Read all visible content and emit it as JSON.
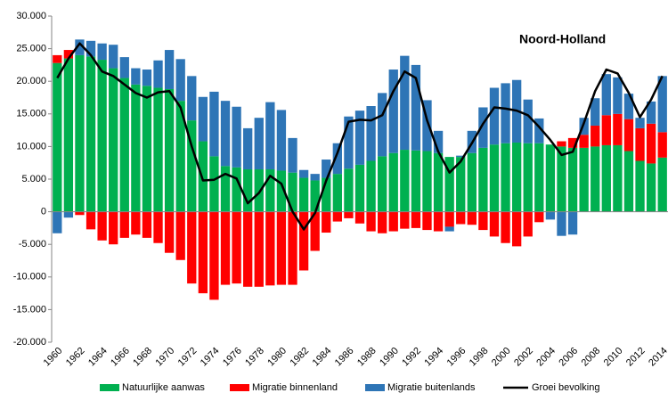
{
  "chart_data": {
    "type": "bar",
    "stacked": true,
    "title": "Noord-Holland",
    "categories": [
      "1960",
      null,
      "1962",
      null,
      "1964",
      null,
      "1966",
      null,
      "1968",
      null,
      "1970",
      null,
      "1972",
      null,
      "1974",
      null,
      "1976",
      null,
      "1978",
      null,
      "1980",
      null,
      "1982",
      null,
      "1984",
      null,
      "1986",
      null,
      "1988",
      null,
      "1990",
      null,
      "1992",
      null,
      "1994",
      null,
      "1996",
      null,
      "1998",
      null,
      "2000",
      null,
      "2002",
      null,
      "2004",
      null,
      "2006",
      null,
      "2008",
      null,
      "2010",
      null,
      "2012",
      null,
      "2014"
    ],
    "series": [
      {
        "name": "Natuurlijke aanwas",
        "color": "#00b050",
        "type": "bar",
        "values": [
          22800,
          23500,
          24000,
          23800,
          23300,
          22000,
          20500,
          19500,
          19300,
          19000,
          18800,
          17000,
          14000,
          10800,
          8500,
          7000,
          6800,
          6500,
          6500,
          6500,
          6300,
          6000,
          5200,
          4800,
          5200,
          5800,
          6600,
          7200,
          7800,
          8500,
          9000,
          9500,
          9400,
          9300,
          9000,
          8400,
          8400,
          9000,
          9800,
          10300,
          10500,
          10600,
          10500,
          10500,
          10300,
          10000,
          9800,
          9800,
          10000,
          10200,
          10200,
          9300,
          7800,
          7400,
          8300
        ]
      },
      {
        "name": "Migratie binnenland",
        "color": "#ff0000",
        "type": "bar",
        "values": [
          1200,
          1300,
          -500,
          -2700,
          -4400,
          -5000,
          -4000,
          -3500,
          -4000,
          -4800,
          -6300,
          -7400,
          -11000,
          -12500,
          -13500,
          -11200,
          -11000,
          -11500,
          -11500,
          -11300,
          -11200,
          -11200,
          -9000,
          -6000,
          -3200,
          -1500,
          -1000,
          -1800,
          -3000,
          -3300,
          -3000,
          -2600,
          -2500,
          -2800,
          -3000,
          -2300,
          -1900,
          -2000,
          -2800,
          -3800,
          -4800,
          -5300,
          -3800,
          -1600,
          0,
          800,
          1500,
          2000,
          3200,
          4600,
          4800,
          4900,
          5000,
          6100,
          3900
        ]
      },
      {
        "name": "Migratie buitenlands",
        "color": "#2e75b6",
        "type": "bar",
        "values": [
          -3300,
          -900,
          2400,
          2400,
          2500,
          3600,
          3200,
          2500,
          2500,
          4200,
          6000,
          6400,
          6800,
          6800,
          9900,
          10000,
          9300,
          6300,
          7900,
          10300,
          9300,
          5300,
          1200,
          1000,
          2800,
          4700,
          8000,
          8300,
          8400,
          9700,
          12800,
          14400,
          13100,
          7800,
          3400,
          -700,
          200,
          3400,
          6200,
          8700,
          9200,
          9600,
          6700,
          3800,
          -1200,
          -3700,
          -3500,
          2600,
          4200,
          6300,
          5600,
          3900,
          1600,
          3400,
          8600
        ]
      },
      {
        "name": "Groei bevolking",
        "color": "#000000",
        "type": "line",
        "values": [
          20500,
          23500,
          25800,
          24000,
          21500,
          20800,
          19500,
          18200,
          17500,
          18300,
          18500,
          16000,
          10000,
          4800,
          4900,
          5800,
          5100,
          1300,
          2900,
          5500,
          4300,
          0,
          -2700,
          -200,
          4800,
          9000,
          13800,
          14100,
          14000,
          14800,
          18500,
          21500,
          20500,
          14000,
          9200,
          6000,
          7700,
          10500,
          13500,
          16000,
          15800,
          15500,
          14800,
          13000,
          11000,
          8700,
          9200,
          13600,
          18500,
          21800,
          21200,
          18200,
          14500,
          17200,
          20800
        ]
      }
    ],
    "ylim": [
      -20000,
      30000
    ],
    "yticks": [
      {
        "value": -20000,
        "label": "-20.000"
      },
      {
        "value": -15000,
        "label": "-15.000"
      },
      {
        "value": -10000,
        "label": "-10.000"
      },
      {
        "value": -5000,
        "label": "-5.000"
      },
      0,
      {
        "value": 5000,
        "label": "5.000"
      },
      {
        "value": 10000,
        "label": "10.000"
      },
      {
        "value": 15000,
        "label": "15.000"
      },
      {
        "value": 20000,
        "label": "20.000"
      },
      {
        "value": 25000,
        "label": "25.000"
      },
      {
        "value": 30000,
        "label": "30.000"
      }
    ],
    "grid": false,
    "legend": "bottom"
  }
}
